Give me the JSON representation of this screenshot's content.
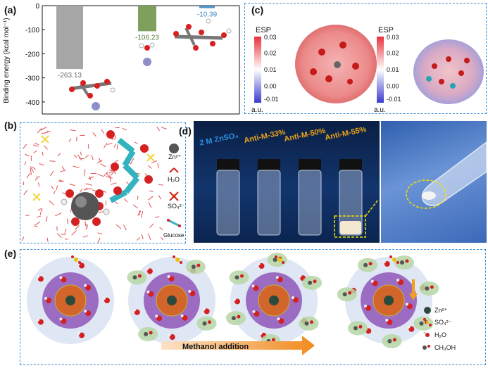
{
  "panels": {
    "a": {
      "label": "(a)",
      "chart_data": {
        "type": "bar",
        "categories": [
          "",
          "",
          ""
        ],
        "values": [
          -263.13,
          -106.23,
          -10.39
        ],
        "value_labels": [
          "-263.13",
          "-106.23",
          "-10.39"
        ],
        "colors": [
          "#a6a6a6",
          "#7ea05c",
          "#4f95c9"
        ],
        "label_colors": [
          "#6b6b6b",
          "#5a7d3a",
          "#3b85c2"
        ],
        "ylabel": "Binding energy (kcal mol⁻¹)",
        "ylim": [
          -450,
          0
        ],
        "yticks": [
          0,
          -100,
          -200,
          -300,
          -400
        ],
        "ytick_labels": [
          "0",
          "-100",
          "-200",
          "-300",
          "-400"
        ]
      }
    },
    "b": {
      "label": "(b)",
      "legend": [
        {
          "label": "Zn²⁺",
          "icon": "zinc-ion-icon"
        },
        {
          "label": "H₂O",
          "icon": "water-molecule-icon"
        },
        {
          "label": "SO₄²⁻",
          "icon": "sulfate-ion-icon"
        },
        {
          "label": "Glucose",
          "icon": "glucose-molecule-icon"
        }
      ]
    },
    "c": {
      "label": "(c)",
      "maps": [
        {
          "title": "ESP",
          "ticks": [
            "0.03",
            "0.02",
            "0.01",
            "0.00",
            "-0.01"
          ],
          "unit": "a.u."
        },
        {
          "title": "ESP",
          "ticks": [
            "0.03",
            "0.02",
            "0.01",
            "0.00",
            "-0.01"
          ],
          "unit": "a.u."
        }
      ]
    },
    "d": {
      "label": "(d)",
      "vials": [
        {
          "label": "2 M ZnSO₄",
          "color": "#2b8fe0"
        },
        {
          "label": "Anti-M-33%",
          "color": "#e8a21a"
        },
        {
          "label": "Anti-M-50%",
          "color": "#e8a21a"
        },
        {
          "label": "Anti-M-55%",
          "color": "#e8a21a"
        }
      ]
    },
    "e": {
      "label": "(e)",
      "arrow_label": "Methanol addition",
      "legend": [
        {
          "label": "Zn²⁺",
          "icon": "zinc-dot-icon"
        },
        {
          "label": "SO₄²⁻",
          "icon": "sulfate-dot-icon"
        },
        {
          "label": "H₂O",
          "icon": "water-dot-icon"
        },
        {
          "label": "CH₃OH",
          "icon": "methanol-dot-icon"
        }
      ]
    }
  }
}
